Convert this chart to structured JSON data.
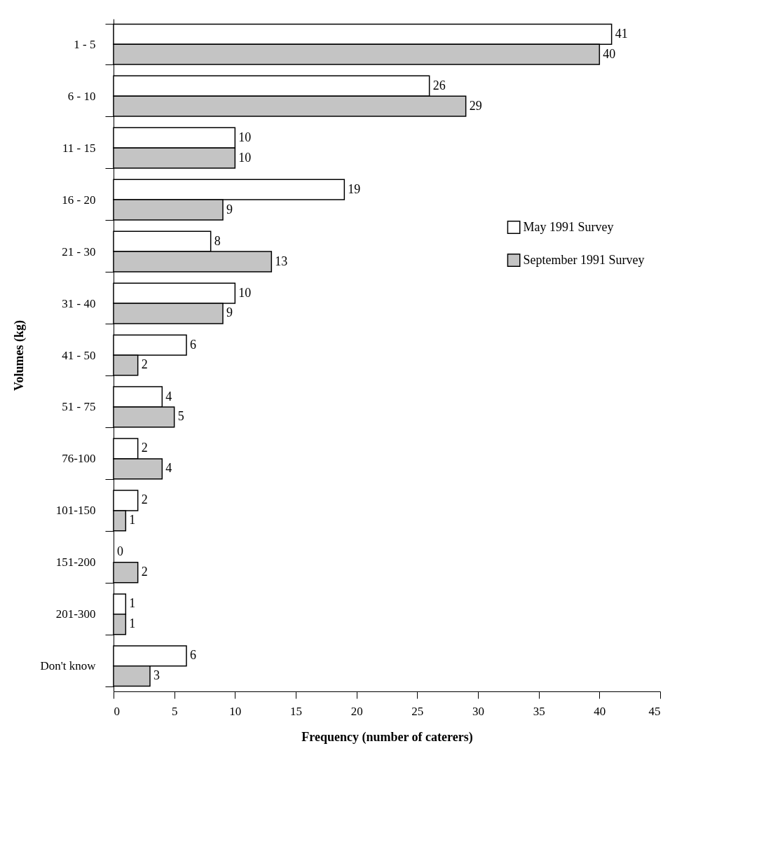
{
  "chart_data": {
    "type": "bar",
    "orientation": "horizontal",
    "xlabel": "Frequency (number of caterers)",
    "ylabel": "Volumes (kg)",
    "categories": [
      "1 - 5",
      "6 - 10",
      "11 - 15",
      "16 - 20",
      "21 - 30",
      "31 - 40",
      "41 - 50",
      "51 - 75",
      "76-100",
      "101-150",
      "151-200",
      "201-300",
      "Don't know"
    ],
    "series": [
      {
        "name": "May 1991 Survey",
        "color": "#ffffff",
        "values": [
          41,
          26,
          10,
          19,
          8,
          10,
          6,
          4,
          2,
          2,
          0,
          1,
          6
        ]
      },
      {
        "name": "September 1991 Survey",
        "color": "#c4c4c4",
        "values": [
          40,
          29,
          10,
          9,
          13,
          9,
          2,
          5,
          4,
          1,
          2,
          1,
          3
        ]
      }
    ],
    "xlim": [
      0,
      45
    ],
    "xticks": [
      0,
      5,
      10,
      15,
      20,
      25,
      30,
      35,
      40,
      45
    ],
    "data_labels": true,
    "legend": "right",
    "grid": false
  }
}
